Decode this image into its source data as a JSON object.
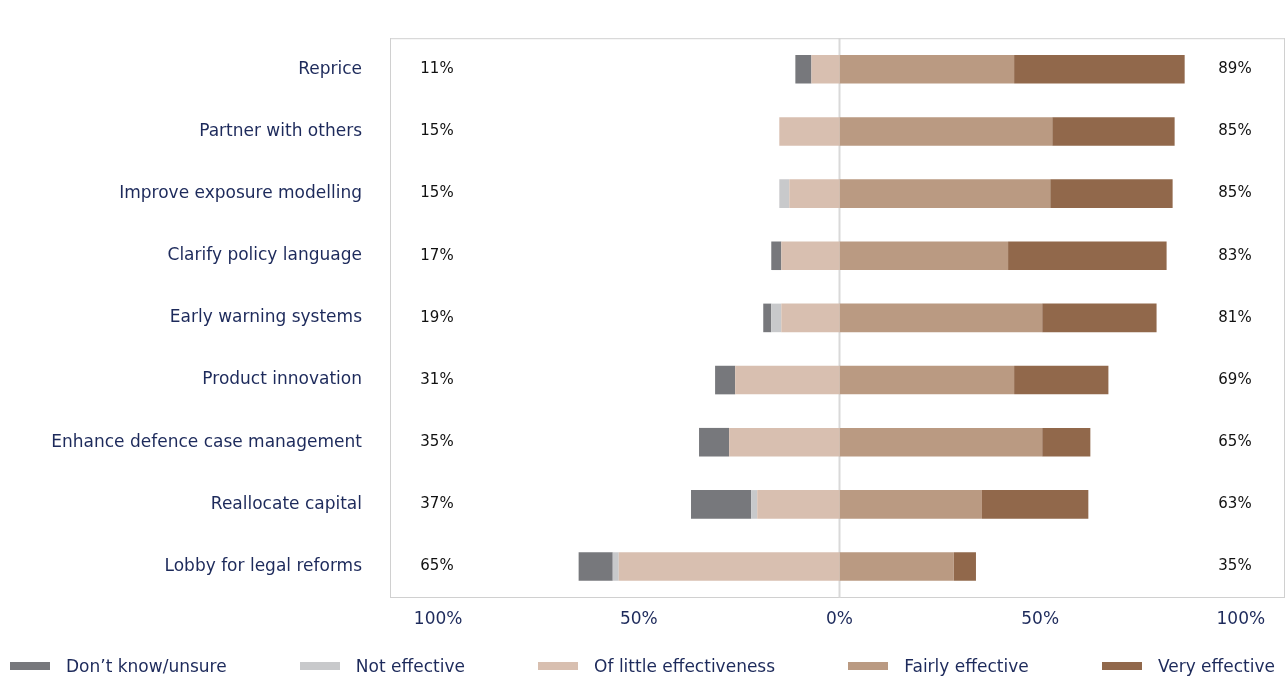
{
  "chart_data": {
    "type": "bar",
    "orientation": "horizontal",
    "stacked": true,
    "legend": "bottom",
    "grid": false,
    "categories": [
      "Reprice",
      "Partner with others",
      "Improve exposure modelling",
      "Clarify policy language",
      "Early warning systems",
      "Product innovation",
      "Enhance defence case management",
      "Reallocate capital",
      "Lobby for legal reforms"
    ],
    "series": [
      {
        "name": "Of little effectiveness",
        "color": "#d8bfb0",
        "values": [
          -7,
          -15,
          -12.5,
          -14.5,
          -14.5,
          -26,
          -27.5,
          -20.5,
          -55
        ]
      },
      {
        "name": "Not effective",
        "color": "#c8c9cb",
        "values": [
          0,
          0,
          -2.5,
          0,
          -2.5,
          0,
          0,
          -1.5,
          -1.5
        ]
      },
      {
        "name": "Don’t know/unsure",
        "color": "#77787c",
        "values": [
          -4,
          0,
          0,
          -2.5,
          -2,
          -5,
          -7.5,
          -15,
          -8.5
        ]
      },
      {
        "name": "Fairly effective",
        "color": "#ba9a82",
        "values": [
          43.5,
          53,
          52.5,
          42,
          50.5,
          43.5,
          50.5,
          35.5,
          28.5
        ]
      },
      {
        "name": "Very effective",
        "color": "#91684b",
        "values": [
          42.5,
          30.5,
          30.5,
          39.5,
          28.5,
          23.5,
          12,
          26.5,
          5.5
        ]
      }
    ],
    "xlim": [
      -112,
      111
    ],
    "xticks": [
      {
        "value": -100,
        "label": "100%"
      },
      {
        "value": -50,
        "label": "50%"
      },
      {
        "value": 0,
        "label": "0%"
      },
      {
        "value": 50,
        "label": "50%"
      },
      {
        "value": 100,
        "label": "100%"
      }
    ],
    "ref_lines": [
      {
        "axis": "x",
        "value": 0,
        "color": "#d9d9d9"
      }
    ],
    "annotations": [
      "11%",
      "89%",
      "15%",
      "85%",
      "15%",
      "85%",
      "17%",
      "83%",
      "19%",
      "81%",
      "31%",
      "69%",
      "35%",
      "65%",
      "37%",
      "63%",
      "65%",
      "35%"
    ]
  }
}
